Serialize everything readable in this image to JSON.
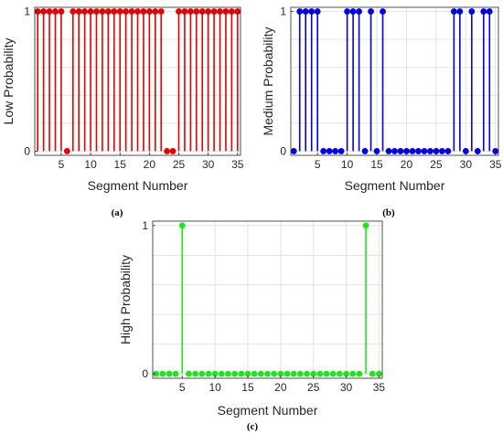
{
  "chart_data": [
    {
      "type": "stem",
      "caption": "(a)",
      "xlabel": "Segment Number",
      "ylabel": "Low Probability",
      "xlim": [
        0.5,
        35.5
      ],
      "ylim": [
        -0.03,
        1.03
      ],
      "xticks": [
        5,
        10,
        15,
        20,
        25,
        30,
        35
      ],
      "yticks": [
        0,
        1
      ],
      "grid": true,
      "color": "#e60000",
      "x": [
        1,
        2,
        3,
        4,
        5,
        6,
        7,
        8,
        9,
        10,
        11,
        12,
        13,
        14,
        15,
        16,
        17,
        18,
        19,
        20,
        21,
        22,
        23,
        24,
        25,
        26,
        27,
        28,
        29,
        30,
        31,
        32,
        33,
        34,
        35
      ],
      "values": [
        1,
        1,
        1,
        1,
        1,
        0,
        1,
        1,
        1,
        1,
        1,
        1,
        1,
        1,
        1,
        1,
        1,
        1,
        1,
        1,
        1,
        1,
        0,
        0,
        1,
        1,
        1,
        1,
        1,
        1,
        1,
        1,
        1,
        1,
        1
      ]
    },
    {
      "type": "stem",
      "caption": "(b)",
      "xlabel": "Segment Number",
      "ylabel": "Medium Probability",
      "xlim": [
        0.5,
        35.5
      ],
      "ylim": [
        -0.03,
        1.03
      ],
      "xticks": [
        5,
        10,
        15,
        20,
        25,
        30,
        35
      ],
      "yticks": [
        0,
        1
      ],
      "grid": true,
      "color": "#0000e6",
      "x": [
        1,
        2,
        3,
        4,
        5,
        6,
        7,
        8,
        9,
        10,
        11,
        12,
        13,
        14,
        15,
        16,
        17,
        18,
        19,
        20,
        21,
        22,
        23,
        24,
        25,
        26,
        27,
        28,
        29,
        30,
        31,
        32,
        33,
        34,
        35
      ],
      "values": [
        0,
        1,
        1,
        1,
        1,
        0,
        0,
        0,
        0,
        1,
        1,
        1,
        0,
        1,
        0,
        1,
        0,
        0,
        0,
        0,
        0,
        0,
        0,
        0,
        0,
        0,
        0,
        1,
        1,
        0,
        1,
        0,
        1,
        1,
        0
      ]
    },
    {
      "type": "stem",
      "caption": "(c)",
      "xlabel": "Segment Number",
      "ylabel": "High Probability",
      "xlim": [
        0.5,
        35.5
      ],
      "ylim": [
        -0.03,
        1.03
      ],
      "xticks": [
        5,
        10,
        15,
        20,
        25,
        30,
        35
      ],
      "yticks": [
        0,
        1
      ],
      "grid": true,
      "color": "#1ee61e",
      "x": [
        1,
        2,
        3,
        4,
        5,
        6,
        7,
        8,
        9,
        10,
        11,
        12,
        13,
        14,
        15,
        16,
        17,
        18,
        19,
        20,
        21,
        22,
        23,
        24,
        25,
        26,
        27,
        28,
        29,
        30,
        31,
        32,
        33,
        34,
        35
      ],
      "values": [
        0,
        0,
        0,
        0,
        1,
        0,
        0,
        0,
        0,
        0,
        0,
        0,
        0,
        0,
        0,
        0,
        0,
        0,
        0,
        0,
        0,
        0,
        0,
        0,
        0,
        0,
        0,
        0,
        0,
        0,
        0,
        0,
        1,
        0,
        0
      ]
    }
  ]
}
